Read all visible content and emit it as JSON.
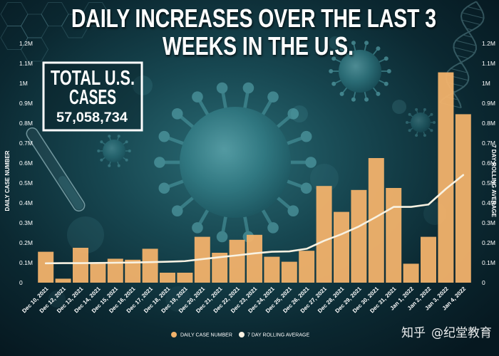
{
  "chart_data": {
    "type": "bar",
    "title_lines": [
      "DAILY INCREASES OVER THE LAST 3",
      "WEEKS IN THE U.S."
    ],
    "categories": [
      "Dec 10, 2021",
      "Dec 12, 2021",
      "Dec 13, 2021",
      "Dec 14, 2021",
      "Dec 15, 2021",
      "Dec 16, 2021",
      "Dec 17, 2021",
      "Dec 18, 2021",
      "Dec 19, 2021",
      "Dec 20, 2021",
      "Dec 21, 2021",
      "Dec 22, 2021",
      "Dec 23, 2021",
      "Dec 24, 2021",
      "Dec 25, 2021",
      "Dec 26, 2021",
      "Dec 27, 2021",
      "Dec 28, 2021",
      "Dec 29, 2021",
      "Dec 30, 2021",
      "Dec 31, 2021",
      "Jan 1, 2022",
      "Jan 2, 2022",
      "Jan 3, 2022",
      "Jan 4, 2022"
    ],
    "series": [
      {
        "name": "DAILY CASE NUMBER",
        "type": "bar",
        "color": "#F2B26B",
        "values": [
          155000,
          20000,
          175000,
          100000,
          120000,
          115000,
          170000,
          50000,
          50000,
          230000,
          150000,
          215000,
          240000,
          130000,
          105000,
          160000,
          485000,
          355000,
          465000,
          625000,
          475000,
          95000,
          230000,
          1055000,
          845000
        ]
      },
      {
        "name": "7 DAY ROLLING AVERAGE",
        "type": "line",
        "color": "#F8F2E2",
        "values": [
          97000,
          98000,
          98000,
          99000,
          100000,
          101000,
          103000,
          105000,
          108000,
          118000,
          128000,
          137000,
          147000,
          155000,
          157000,
          170000,
          210000,
          243000,
          282000,
          330000,
          380000,
          380000,
          392000,
          470000,
          540000
        ]
      }
    ],
    "xlabel": "",
    "ylabel": "DAILY CASE NUMBER",
    "ylabel_right": "7 DAY ROLLING AVERAGE",
    "ylim": [
      0,
      1200000
    ],
    "yticks": [
      {
        "value": 0,
        "label": "0"
      },
      {
        "value": 100000,
        "label": "0.1M"
      },
      {
        "value": 200000,
        "label": "0.2M"
      },
      {
        "value": 300000,
        "label": "0.3M"
      },
      {
        "value": 400000,
        "label": "0.4M"
      },
      {
        "value": 500000,
        "label": "0.5M"
      },
      {
        "value": 600000,
        "label": "0.6M"
      },
      {
        "value": 700000,
        "label": "0.7M"
      },
      {
        "value": 800000,
        "label": "0.8M"
      },
      {
        "value": 900000,
        "label": "0.9M"
      },
      {
        "value": 1000000,
        "label": "1M"
      },
      {
        "value": 1100000,
        "label": "1.1M"
      },
      {
        "value": 1200000,
        "label": "1.2M"
      }
    ],
    "grid": false,
    "legend_position": "bottom-center"
  },
  "total_box": {
    "line1": "TOTAL U.S.",
    "line2": "CASES",
    "value": "57,058,734"
  },
  "watermark": {
    "platform": "知乎",
    "account": "@纪堂教育"
  },
  "colors": {
    "background": "#0b2831",
    "text": "#ffffff"
  }
}
